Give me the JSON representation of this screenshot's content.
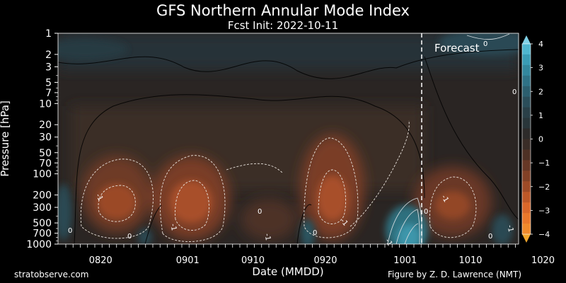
{
  "header": {
    "title": "GFS Northern Annular Mode Index",
    "subtitle": "Fcst Init: 2022-10-11"
  },
  "footer": {
    "left_credit": "stratobserve.com",
    "right_credit": "Figure by Z. D. Lawrence (NMT)"
  },
  "chart_data": {
    "type": "heatmap",
    "title": "GFS Northern Annular Mode Index",
    "subtitle": "Fcst Init: 2022-10-11",
    "xlabel": "Date (MMDD)",
    "ylabel": "Pressure [hPa]",
    "x_tick_labels": [
      "0820",
      "0901",
      "0910",
      "0920",
      "1001",
      "1010",
      "1020"
    ],
    "y_tick_values": [
      1,
      2,
      3,
      5,
      7,
      10,
      20,
      30,
      50,
      70,
      100,
      200,
      300,
      500,
      700,
      1000
    ],
    "y_tick_labels": [
      "1",
      "2",
      "3",
      "5",
      "7",
      "10",
      "20",
      "30",
      "50",
      "70",
      "100",
      "200",
      "300",
      "500",
      "700",
      "1000"
    ],
    "y_scale": "log",
    "y_inverted": true,
    "colorbar": {
      "tick_values": [
        4,
        3,
        2,
        1,
        0,
        -1,
        -2,
        -3,
        -4
      ],
      "tick_labels": [
        "4",
        "3",
        "2",
        "1",
        "0",
        "−1",
        "−2",
        "−3",
        "−4"
      ],
      "range": [
        -4,
        4
      ],
      "colors_positive": [
        "#3a9cb5",
        "#2f7f96",
        "#2c6270",
        "#2a4a52",
        "#293a3e"
      ],
      "colors_negative": [
        "#3b302b",
        "#5a3524",
        "#8a4526",
        "#bf5a28",
        "#e8762a",
        "#f08d2c"
      ]
    },
    "forecast_line_label": "Forecast",
    "contour_zero_labels": [
      "0",
      "0",
      "0",
      "0",
      "0",
      "0",
      "0",
      "0"
    ],
    "contour_neg_labels": [
      "-1",
      "-1",
      "-1",
      "-1",
      "-1",
      "-1",
      "-1"
    ]
  }
}
